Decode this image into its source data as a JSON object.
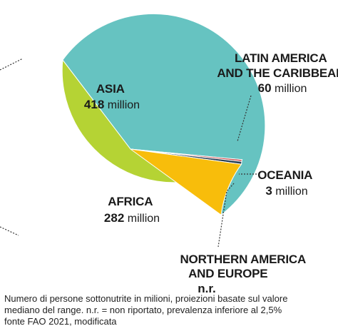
{
  "chart_data": {
    "type": "pie",
    "slices": [
      {
        "label_lines": [
          "ASIA"
        ],
        "value": 418,
        "value_text": "418",
        "unit": "million",
        "color": "#66c3c1"
      },
      {
        "label_lines": [
          "AFRICA"
        ],
        "value": 282,
        "value_text": "282",
        "unit": "million",
        "color": "#b5d334"
      },
      {
        "label_lines": [
          "NORTHERN AMERICA",
          "AND EUROPE"
        ],
        "value": 2,
        "value_text": "n.r.",
        "unit": "",
        "color": "#c8494a"
      },
      {
        "label_lines": [
          "OCEANIA"
        ],
        "value": 3,
        "value_text": "3",
        "unit": "million",
        "color": "#2c4257"
      },
      {
        "label_lines": [
          "LATIN AMERICA",
          "AND THE CARIBBEAN"
        ],
        "value": 60,
        "value_text": "60",
        "unit": "million",
        "color": "#f8bd0b"
      }
    ],
    "legend": "none"
  },
  "notes": [
    "Numero di persone sottonutrite in milioni, proiezioni basate sul valore",
    "mediano del range. n.r. = non riportato, prevalenza inferiore al 2,5%",
    "fonte FAO 2021, modificata"
  ]
}
